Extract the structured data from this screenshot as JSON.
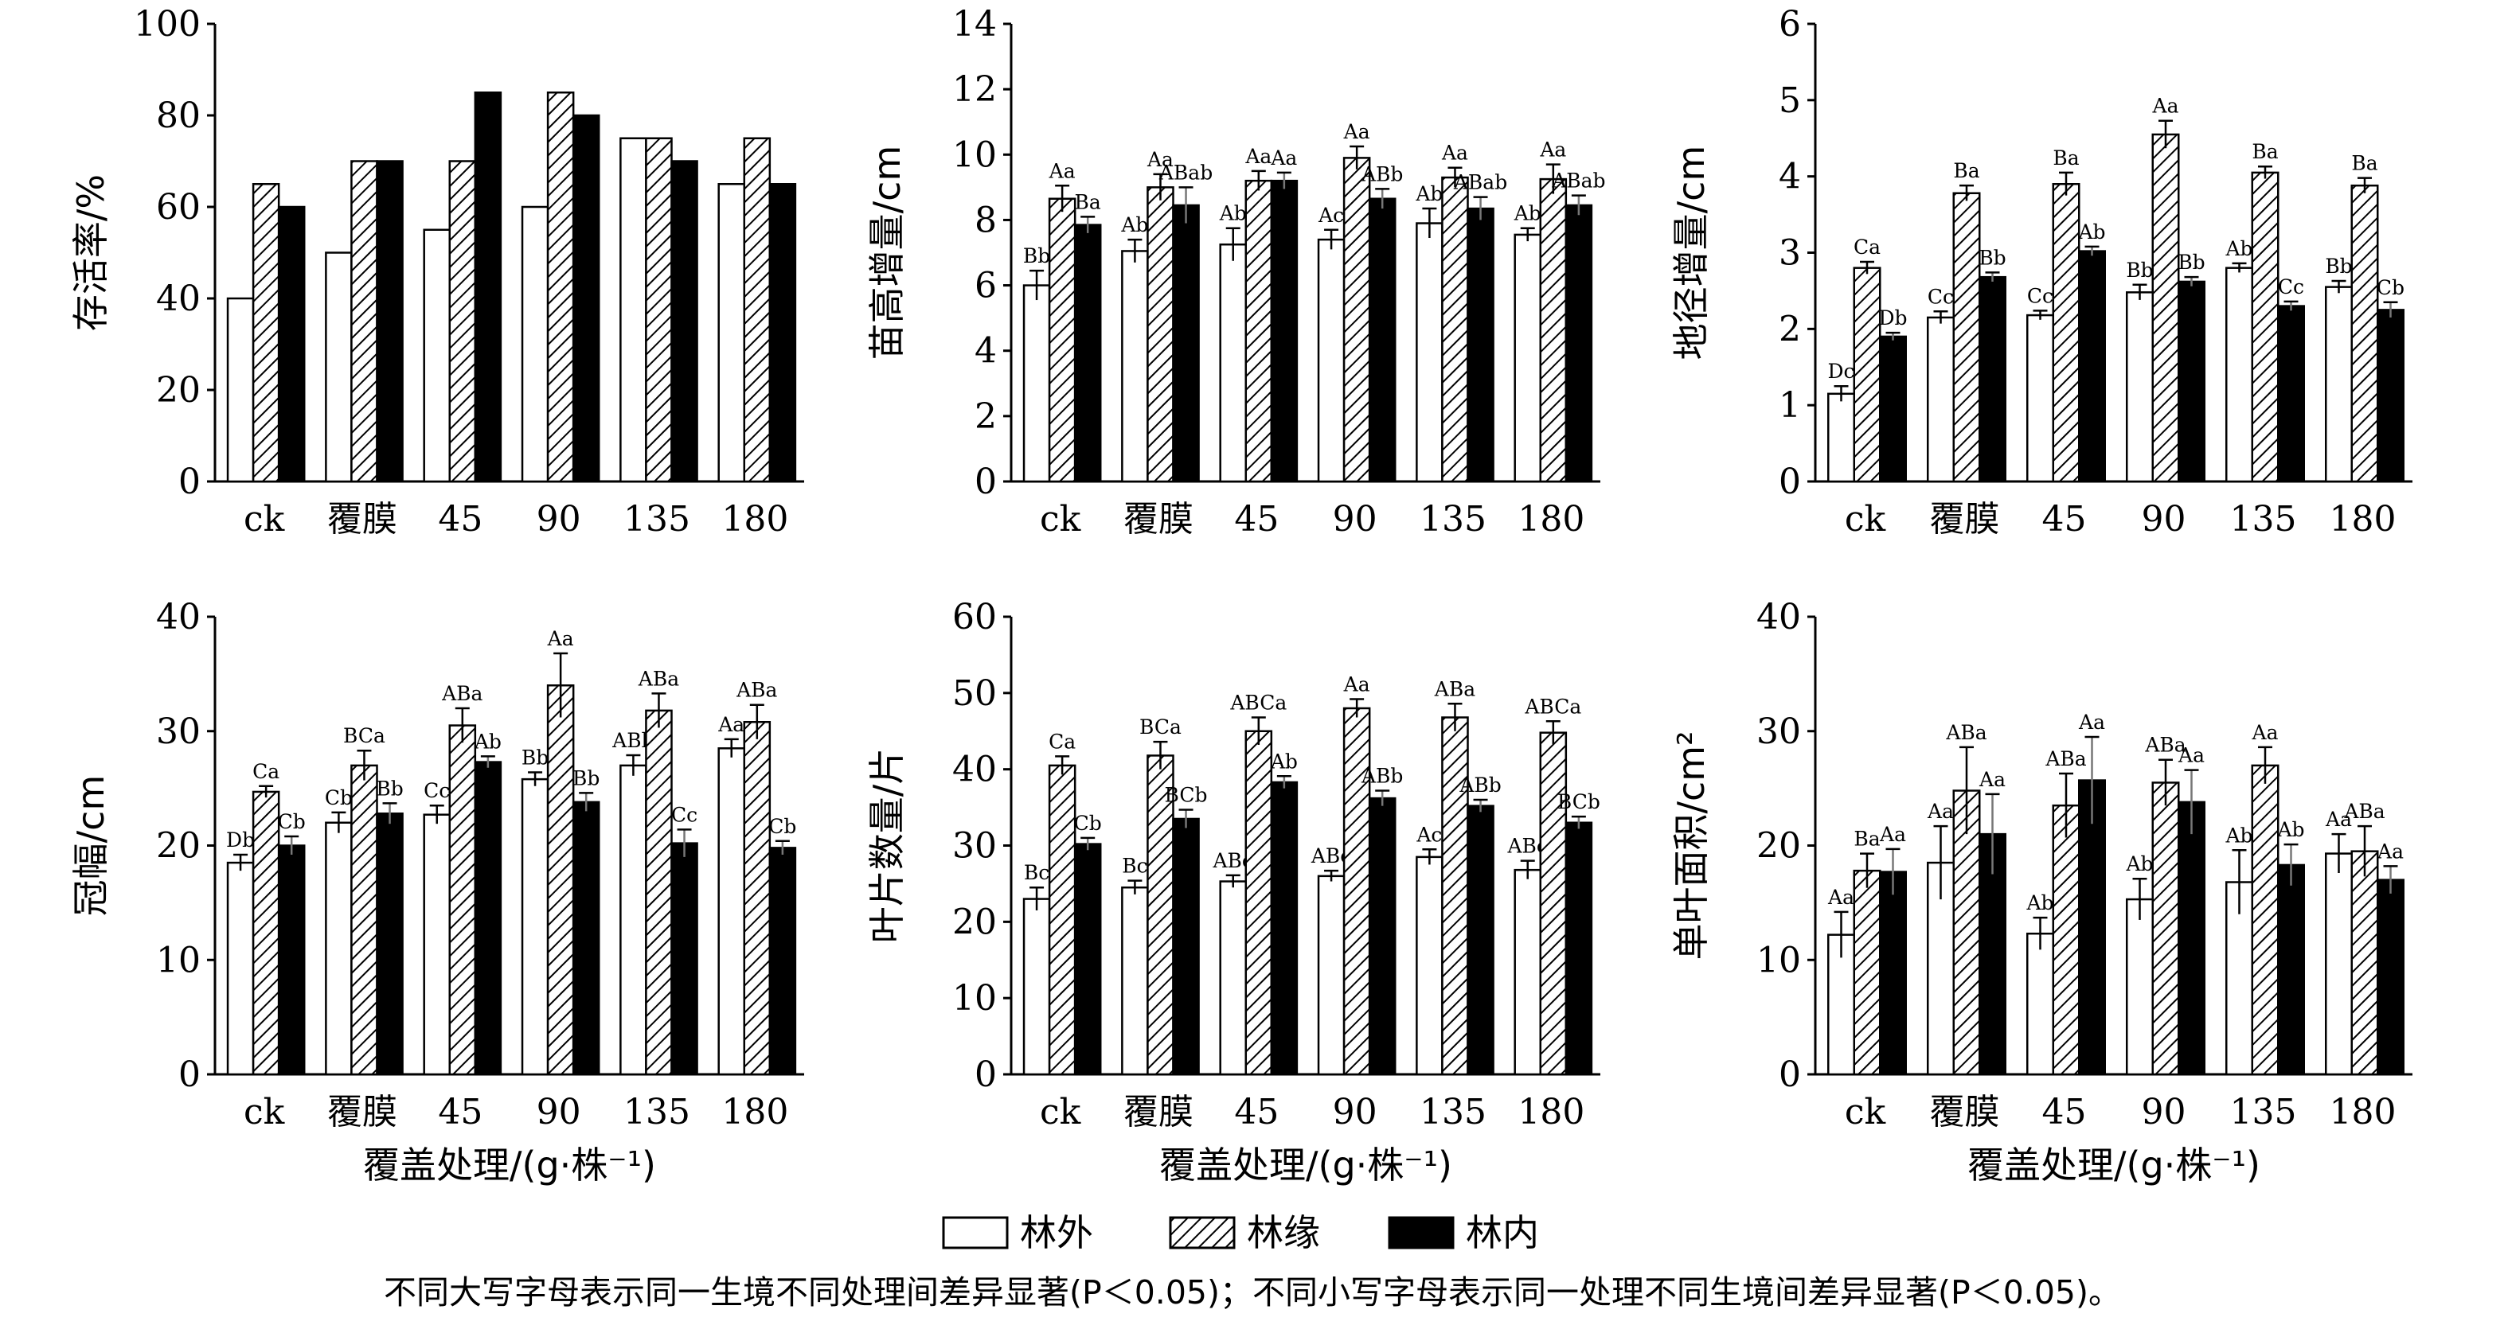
{
  "legend": [
    {
      "label": "林外",
      "fill": "white"
    },
    {
      "label": "林缘",
      "fill": "hatch"
    },
    {
      "label": "林内",
      "fill": "black"
    }
  ],
  "colors": {
    "bar_border": "#000000",
    "inner": "#000000",
    "edge_hatch": "#000000",
    "outer": "#ffffff"
  },
  "footnote": "不同大写字母表示同一生境不同处理间差异显著(P＜0.05)；不同小写字母表示同一处理不同生境间差异显著(P＜0.05)。",
  "chart_data": [
    {
      "type": "bar",
      "ylabel": "存活率/%",
      "xlabel": "",
      "categories": [
        "ck",
        "覆膜",
        "45",
        "90",
        "135",
        "180"
      ],
      "ylim": [
        0,
        100
      ],
      "yticks": [
        0,
        20,
        40,
        60,
        80,
        100
      ],
      "series": [
        {
          "name": "林外",
          "values": [
            40,
            50,
            55,
            60,
            75,
            65
          ]
        },
        {
          "name": "林缘",
          "values": [
            65,
            70,
            70,
            85,
            75,
            75
          ]
        },
        {
          "name": "林内",
          "values": [
            60,
            70,
            85,
            80,
            70,
            65
          ]
        }
      ]
    },
    {
      "type": "bar",
      "ylabel": "苗高增量/cm",
      "xlabel": "",
      "categories": [
        "ck",
        "覆膜",
        "45",
        "90",
        "135",
        "180"
      ],
      "ylim": [
        0,
        14
      ],
      "yticks": [
        0,
        2,
        4,
        6,
        8,
        10,
        12,
        14
      ],
      "series": [
        {
          "name": "林外",
          "values": [
            6.0,
            7.05,
            7.25,
            7.4,
            7.9,
            7.55
          ],
          "errors": [
            0.45,
            0.35,
            0.5,
            0.3,
            0.45,
            0.2
          ],
          "labels": [
            "Bb",
            "Ab",
            "Ab",
            "Ac",
            "Ab",
            "Ab"
          ]
        },
        {
          "name": "林缘",
          "values": [
            8.65,
            9.0,
            9.2,
            9.9,
            9.3,
            9.25
          ],
          "errors": [
            0.4,
            0.4,
            0.3,
            0.35,
            0.3,
            0.45
          ],
          "labels": [
            "Aa",
            "Aa",
            "Aa",
            "Aa",
            "Aa",
            "Aa"
          ]
        },
        {
          "name": "林内",
          "values": [
            7.85,
            8.45,
            9.2,
            8.65,
            8.35,
            8.45
          ],
          "errors": [
            0.25,
            0.55,
            0.25,
            0.3,
            0.35,
            0.3
          ],
          "labels": [
            "Ba",
            "ABab",
            "Aa",
            "ABb",
            "ABab",
            "ABab"
          ]
        }
      ]
    },
    {
      "type": "bar",
      "ylabel": "地径增量/cm",
      "xlabel": "",
      "categories": [
        "ck",
        "覆膜",
        "45",
        "90",
        "135",
        "180"
      ],
      "ylim": [
        0,
        6
      ],
      "yticks": [
        0,
        1,
        2,
        3,
        4,
        5,
        6
      ],
      "series": [
        {
          "name": "林外",
          "values": [
            1.15,
            2.15,
            2.18,
            2.48,
            2.8,
            2.55
          ],
          "errors": [
            0.1,
            0.08,
            0.06,
            0.1,
            0.06,
            0.08
          ],
          "labels": [
            "Dc",
            "Cc",
            "Cc",
            "Bb",
            "Ab",
            "Bb"
          ]
        },
        {
          "name": "林缘",
          "values": [
            2.8,
            3.78,
            3.9,
            4.55,
            4.05,
            3.88
          ],
          "errors": [
            0.08,
            0.1,
            0.15,
            0.18,
            0.08,
            0.1
          ],
          "labels": [
            "Ca",
            "Ba",
            "Ba",
            "Aa",
            "Ba",
            "Ba"
          ]
        },
        {
          "name": "林内",
          "values": [
            1.9,
            2.68,
            3.02,
            2.62,
            2.3,
            2.25
          ],
          "errors": [
            0.05,
            0.06,
            0.06,
            0.06,
            0.06,
            0.1
          ],
          "labels": [
            "Db",
            "Bb",
            "Ab",
            "Bb",
            "Cc",
            "Cb"
          ]
        }
      ]
    },
    {
      "type": "bar",
      "ylabel": "冠幅/cm",
      "xlabel": "覆盖处理/(g·株⁻¹)",
      "categories": [
        "ck",
        "覆膜",
        "45",
        "90",
        "135",
        "180"
      ],
      "ylim": [
        0,
        40
      ],
      "yticks": [
        0,
        10,
        20,
        30,
        40
      ],
      "series": [
        {
          "name": "林外",
          "values": [
            18.5,
            22.0,
            22.7,
            25.8,
            27.0,
            28.5
          ],
          "errors": [
            0.7,
            0.9,
            0.8,
            0.6,
            0.9,
            0.8
          ],
          "labels": [
            "Db",
            "Cb",
            "Cc",
            "Bb",
            "ABb",
            "Aa"
          ]
        },
        {
          "name": "林缘",
          "values": [
            24.7,
            27.0,
            30.5,
            34.0,
            31.8,
            30.8
          ],
          "errors": [
            0.5,
            1.3,
            1.5,
            2.8,
            1.5,
            1.5
          ],
          "labels": [
            "Ca",
            "BCa",
            "ABa",
            "Aa",
            "ABa",
            "ABa"
          ]
        },
        {
          "name": "林内",
          "values": [
            20.0,
            22.8,
            27.3,
            23.8,
            20.2,
            19.8
          ],
          "errors": [
            0.8,
            0.9,
            0.5,
            0.8,
            1.2,
            0.6
          ],
          "labels": [
            "Cb",
            "Bb",
            "Ab",
            "Bb",
            "Cc",
            "Cb"
          ]
        }
      ]
    },
    {
      "type": "bar",
      "ylabel": "叶片数量/片",
      "xlabel": "覆盖处理/(g·株⁻¹)",
      "categories": [
        "ck",
        "覆膜",
        "45",
        "90",
        "135",
        "180"
      ],
      "ylim": [
        0,
        60
      ],
      "yticks": [
        0,
        10,
        20,
        30,
        40,
        50,
        60
      ],
      "series": [
        {
          "name": "林外",
          "values": [
            23.0,
            24.5,
            25.3,
            26.0,
            28.5,
            26.8
          ],
          "errors": [
            1.5,
            0.9,
            0.8,
            0.7,
            1.0,
            1.2
          ],
          "labels": [
            "Bc",
            "Bc",
            "ABc",
            "ABc",
            "Ac",
            "ABc"
          ]
        },
        {
          "name": "林缘",
          "values": [
            40.5,
            41.8,
            45.0,
            48.0,
            46.8,
            44.8
          ],
          "errors": [
            1.2,
            1.8,
            1.8,
            1.2,
            1.8,
            1.5
          ],
          "labels": [
            "Ca",
            "BCa",
            "ABCa",
            "Aa",
            "ABa",
            "ABCa"
          ]
        },
        {
          "name": "林内",
          "values": [
            30.2,
            33.5,
            38.3,
            36.2,
            35.2,
            33.0
          ],
          "errors": [
            0.8,
            1.2,
            0.8,
            1.0,
            0.8,
            0.8
          ],
          "labels": [
            "Cb",
            "BCb",
            "Ab",
            "ABb",
            "ABb",
            "BCb"
          ]
        }
      ]
    },
    {
      "type": "bar",
      "ylabel": "单叶面积/cm²",
      "xlabel": "覆盖处理/(g·株⁻¹)",
      "categories": [
        "ck",
        "覆膜",
        "45",
        "90",
        "135",
        "180"
      ],
      "ylim": [
        0,
        40
      ],
      "yticks": [
        0,
        10,
        20,
        30,
        40
      ],
      "series": [
        {
          "name": "林外",
          "values": [
            12.2,
            18.5,
            12.3,
            15.3,
            16.8,
            19.3
          ],
          "errors": [
            2.0,
            3.2,
            1.4,
            1.8,
            2.8,
            1.7
          ],
          "labels": [
            "Aa",
            "Aa",
            "Ab",
            "Ab",
            "Ab",
            "Aa"
          ]
        },
        {
          "name": "林缘",
          "values": [
            17.8,
            24.8,
            23.5,
            25.5,
            27.0,
            19.5
          ],
          "errors": [
            1.5,
            3.8,
            2.8,
            2.0,
            1.6,
            2.2
          ],
          "labels": [
            "Ba",
            "ABa",
            "ABa",
            "ABa",
            "Aa",
            "ABa"
          ]
        },
        {
          "name": "林内",
          "values": [
            17.7,
            21.0,
            25.7,
            23.8,
            18.3,
            17.0
          ],
          "errors": [
            2.0,
            3.5,
            3.8,
            2.8,
            1.8,
            1.2
          ],
          "labels": [
            "Aa",
            "Aa",
            "Aa",
            "Aa",
            "Ab",
            "Aa"
          ]
        }
      ]
    }
  ]
}
